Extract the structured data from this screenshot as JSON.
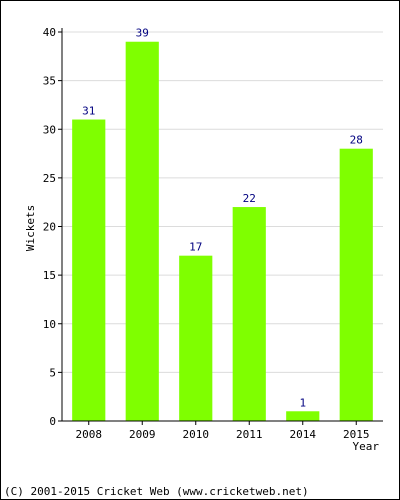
{
  "chart_data": {
    "type": "bar",
    "title": "",
    "xlabel": "Year",
    "ylabel": "Wickets",
    "categories": [
      "2008",
      "2009",
      "2010",
      "2011",
      "2014",
      "2015"
    ],
    "values": [
      31,
      39,
      17,
      22,
      1,
      28
    ],
    "ylim": [
      0,
      40
    ],
    "yticks": [
      0,
      5,
      10,
      15,
      20,
      25,
      30,
      35,
      40
    ],
    "grid": true,
    "legend": "none",
    "bar_color": "#7fff00",
    "label_color": "#000080"
  },
  "footer": {
    "copyright": "(C) 2001-2015 Cricket Web (www.cricketweb.net)"
  }
}
